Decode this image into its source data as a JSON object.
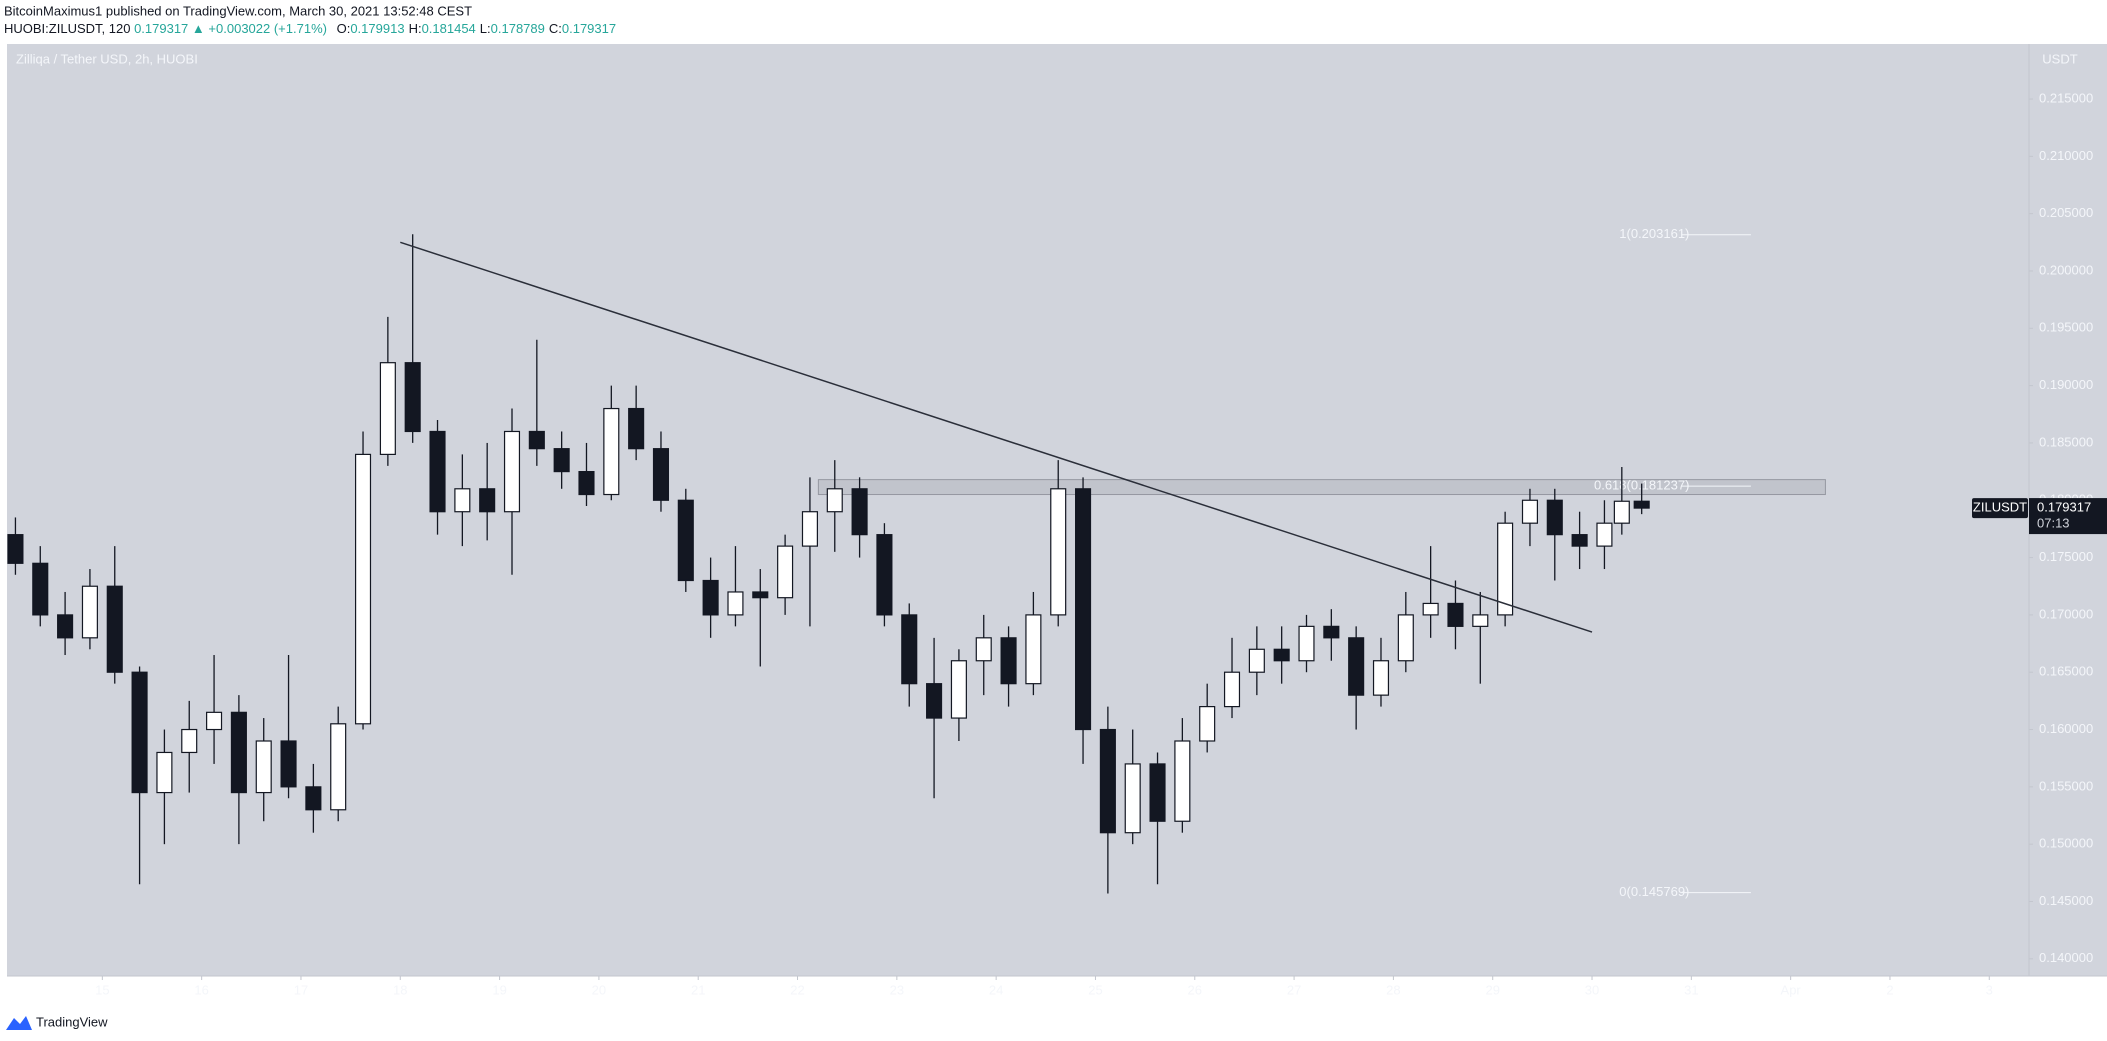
{
  "header": {
    "publisher_line": "BitcoinMaximus1 published on TradingView.com, March 30, 2021 13:52:48 CEST",
    "symbol": "HUOBI:ZILUSDT, 120",
    "price": "0.179317",
    "change": "+0.003022 (+1.71%)",
    "ohlc": [
      {
        "key": "O:",
        "value": "0.179913"
      },
      {
        "key": "H:",
        "value": "0.181454"
      },
      {
        "key": "L:",
        "value": "0.178789"
      },
      {
        "key": "C:",
        "value": "0.179317"
      }
    ]
  },
  "footer": {
    "brand": "TradingView"
  },
  "chart_data": {
    "type": "candlestick",
    "title": "Zilliqa / Tether USD, 2h, HUOBI",
    "y_unit": "USDT",
    "grid": false,
    "x": [
      14.125,
      14.375,
      14.625,
      14.875,
      15.125,
      15.375,
      15.625,
      15.875,
      16.125,
      16.375,
      16.625,
      16.875,
      17.125,
      17.375,
      17.625,
      17.875,
      18.125,
      18.375,
      18.625,
      18.875,
      19.125,
      19.375,
      19.625,
      19.875,
      20.125,
      20.375,
      20.625,
      20.875,
      21.125,
      21.375,
      21.625,
      21.875,
      22.125,
      22.375,
      22.625,
      22.875,
      23.125,
      23.375,
      23.625,
      23.875,
      24.125,
      24.375,
      24.625,
      24.875,
      25.125,
      25.375,
      25.625,
      25.875,
      26.125,
      26.375,
      26.625,
      26.875,
      27.125,
      27.375,
      27.625,
      27.875,
      28.125,
      28.375,
      28.625,
      28.875,
      29.125,
      29.375,
      29.625,
      29.875,
      30.125,
      30.3,
      30.5
    ],
    "open": [
      0.177,
      0.1745,
      0.17,
      0.168,
      0.1725,
      0.165,
      0.1545,
      0.158,
      0.16,
      0.1615,
      0.1545,
      0.159,
      0.155,
      0.153,
      0.1605,
      0.184,
      0.192,
      0.186,
      0.179,
      0.181,
      0.179,
      0.186,
      0.1845,
      0.1825,
      0.1805,
      0.188,
      0.1845,
      0.18,
      0.173,
      0.17,
      0.172,
      0.1715,
      0.176,
      0.179,
      0.181,
      0.177,
      0.17,
      0.164,
      0.161,
      0.166,
      0.168,
      0.164,
      0.17,
      0.181,
      0.16,
      0.151,
      0.157,
      0.152,
      0.159,
      0.162,
      0.165,
      0.167,
      0.166,
      0.169,
      0.168,
      0.163,
      0.166,
      0.17,
      0.171,
      0.169,
      0.17,
      0.178,
      0.18,
      0.177,
      0.176,
      0.178,
      0.179913
    ],
    "high": [
      0.1785,
      0.176,
      0.172,
      0.174,
      0.176,
      0.1655,
      0.16,
      0.1625,
      0.1665,
      0.163,
      0.161,
      0.1665,
      0.157,
      0.162,
      0.186,
      0.196,
      0.2032,
      0.187,
      0.184,
      0.185,
      0.188,
      0.194,
      0.186,
      0.185,
      0.19,
      0.19,
      0.186,
      0.181,
      0.175,
      0.176,
      0.174,
      0.177,
      0.182,
      0.1835,
      0.182,
      0.178,
      0.171,
      0.168,
      0.167,
      0.17,
      0.169,
      0.172,
      0.1835,
      0.182,
      0.162,
      0.16,
      0.158,
      0.161,
      0.164,
      0.168,
      0.169,
      0.169,
      0.17,
      0.1705,
      0.169,
      0.168,
      0.172,
      0.176,
      0.173,
      0.172,
      0.179,
      0.181,
      0.181,
      0.179,
      0.18,
      0.1829,
      0.181454
    ],
    "low": [
      0.1735,
      0.169,
      0.1665,
      0.167,
      0.164,
      0.1465,
      0.15,
      0.1545,
      0.157,
      0.15,
      0.152,
      0.154,
      0.151,
      0.152,
      0.16,
      0.183,
      0.185,
      0.177,
      0.176,
      0.1765,
      0.1735,
      0.183,
      0.181,
      0.1795,
      0.18,
      0.1835,
      0.179,
      0.172,
      0.168,
      0.169,
      0.1655,
      0.17,
      0.169,
      0.1755,
      0.175,
      0.169,
      0.162,
      0.154,
      0.159,
      0.163,
      0.162,
      0.163,
      0.169,
      0.157,
      0.1457,
      0.15,
      0.1465,
      0.151,
      0.158,
      0.161,
      0.163,
      0.164,
      0.165,
      0.166,
      0.16,
      0.162,
      0.165,
      0.168,
      0.167,
      0.164,
      0.169,
      0.176,
      0.173,
      0.174,
      0.174,
      0.177,
      0.178789
    ],
    "close": [
      0.1745,
      0.17,
      0.168,
      0.1725,
      0.165,
      0.1545,
      0.158,
      0.16,
      0.1615,
      0.1545,
      0.159,
      0.155,
      0.153,
      0.1605,
      0.184,
      0.192,
      0.186,
      0.179,
      0.181,
      0.179,
      0.186,
      0.1845,
      0.1825,
      0.1805,
      0.188,
      0.1845,
      0.18,
      0.173,
      0.17,
      0.172,
      0.1715,
      0.176,
      0.179,
      0.181,
      0.177,
      0.17,
      0.164,
      0.161,
      0.166,
      0.168,
      0.164,
      0.17,
      0.181,
      0.16,
      0.151,
      0.157,
      0.152,
      0.159,
      0.162,
      0.165,
      0.167,
      0.166,
      0.169,
      0.168,
      0.163,
      0.166,
      0.17,
      0.171,
      0.169,
      0.17,
      0.178,
      0.18,
      0.177,
      0.176,
      0.178,
      0.179913,
      0.179317
    ],
    "xlim": [
      14.04,
      34.4
    ],
    "xticks": [
      15,
      16,
      17,
      18,
      19,
      20,
      21,
      22,
      23,
      24,
      25,
      26,
      27,
      28,
      29,
      30,
      31,
      {
        "value": 32,
        "label": "Apr"
      },
      {
        "value": 33,
        "label": "2"
      },
      {
        "value": 34,
        "label": "3"
      }
    ],
    "ylim": [
      0.1385,
      0.2198
    ],
    "yticks": [
      {
        "value": 0.14,
        "label": "0.140000"
      },
      {
        "value": 0.145,
        "label": "0.145000"
      },
      {
        "value": 0.15,
        "label": "0.150000"
      },
      {
        "value": 0.155,
        "label": "0.155000"
      },
      {
        "value": 0.16,
        "label": "0.160000"
      },
      {
        "value": 0.165,
        "label": "0.165000"
      },
      {
        "value": 0.17,
        "label": "0.170000"
      },
      {
        "value": 0.175,
        "label": "0.175000"
      },
      {
        "value": 0.18,
        "label": "0.180000"
      },
      {
        "value": 0.185,
        "label": "0.185000"
      },
      {
        "value": 0.19,
        "label": "0.190000"
      },
      {
        "value": 0.195,
        "label": "0.195000"
      },
      {
        "value": 0.2,
        "label": "0.200000"
      },
      {
        "value": 0.205,
        "label": "0.205000"
      },
      {
        "value": 0.21,
        "label": "0.210000"
      },
      {
        "value": 0.215,
        "label": "0.215000"
      }
    ],
    "trendline": {
      "x": [
        18.0,
        30.0
      ],
      "y": [
        0.2025,
        0.1685
      ]
    },
    "zone": {
      "x": [
        22.21,
        32.35
      ],
      "y": [
        0.1805,
        0.1818
      ]
    },
    "fib_range": [
      30.9,
      31.6
    ],
    "fib_levels": [
      {
        "label": "1(0.203161)",
        "price": 0.203161
      },
      {
        "label": "0.618(0.181237)",
        "price": 0.181237
      },
      {
        "label": "0(0.145769)",
        "price": 0.145769
      }
    ],
    "last_price": {
      "symbol": "ZILUSDT",
      "value": 0.179317,
      "countdown": "07:13"
    }
  }
}
